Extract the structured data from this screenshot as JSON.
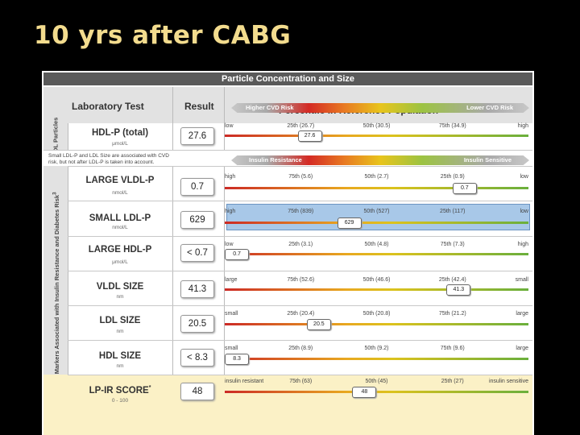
{
  "slide": {
    "title": "10 yrs after CABG"
  },
  "report": {
    "header": "Particle Concentration and Size",
    "lab_test_head": "Laboratory Test",
    "result_head": "Result",
    "percentile_title": "Percentile in Reference Population",
    "percentile_superscript": "2",
    "cvd_band": {
      "left": "Higher CVD Risk",
      "right": "Lower CVD Risk"
    },
    "ir_band": {
      "left": "Insulin Resistance",
      "right": "Insulin Sensitive"
    },
    "hdl_section_label": "HDL Particles",
    "lipoprotein_section_label": "Lipoprotein Markers Associated with Insulin Resistance and Diabetes Risk",
    "lipoprotein_section_superscript": "3",
    "small_ldl_note": "Small LDL-P and LDL Size are associated with CVD risk, but not after LDL-P is taken into account.",
    "colors": {
      "slide_bg": "#000000",
      "title": "#f3dc8e",
      "highlight": "#a8c8e8",
      "score_bg": "#fbf1c6"
    }
  },
  "rows": [
    {
      "name": "HDL-P (total)",
      "unit": "μmol/L",
      "result": "27.6",
      "marker": "27.6",
      "position_percent": 28,
      "labels": [
        "low",
        "25th (26.7)",
        "50th (30.5)",
        "75th (34.9)",
        "high"
      ],
      "gradient": "red-to-green"
    },
    {
      "name": "LARGE VLDL-P",
      "unit": "nmol/L",
      "result": "0.7",
      "marker": "0.7",
      "position_percent": 79,
      "labels": [
        "high",
        "75th (5.6)",
        "50th (2.7)",
        "25th (0.9)",
        "low"
      ],
      "gradient": "red-to-green"
    },
    {
      "name": "SMALL LDL-P",
      "unit": "nmol/L",
      "result": "629",
      "marker": "629",
      "position_percent": 41,
      "labels": [
        "high",
        "75th (839)",
        "50th (527)",
        "25th (117)",
        "low"
      ],
      "gradient": "red-to-green",
      "highlighted": true
    },
    {
      "name": "LARGE HDL-P",
      "unit": "μmol/L",
      "result": "< 0.7",
      "marker": "0.7",
      "position_percent": 4,
      "labels": [
        "low",
        "25th (3.1)",
        "50th (4.8)",
        "75th (7.3)",
        "high"
      ],
      "gradient": "red-to-green"
    },
    {
      "name": "VLDL SIZE",
      "unit": "nm",
      "result": "41.3",
      "marker": "41.3",
      "position_percent": 77,
      "labels": [
        "large",
        "75th (52.6)",
        "50th (46.6)",
        "25th (42.4)",
        "small"
      ],
      "gradient": "red-to-green"
    },
    {
      "name": "LDL SIZE",
      "unit": "nm",
      "result": "20.5",
      "marker": "20.5",
      "position_percent": 31,
      "labels": [
        "small",
        "25th (20.4)",
        "50th (20.8)",
        "75th (21.2)",
        "large"
      ],
      "gradient": "red-to-green"
    },
    {
      "name": "HDL SIZE",
      "unit": "nm",
      "result": "< 8.3",
      "marker": "8.3",
      "position_percent": 4,
      "labels": [
        "small",
        "25th (8.9)",
        "50th (9.2)",
        "75th (9.6)",
        "large"
      ],
      "gradient": "red-to-green"
    },
    {
      "name": "LP-IR SCORE",
      "name_superscript": "*",
      "unit": "0 - 100",
      "result": "48",
      "marker": "48",
      "position_percent": 46,
      "labels": [
        "insulin resistant",
        "75th (63)",
        "50th (45)",
        "25th (27)",
        "insulin sensitive"
      ],
      "gradient": "red-to-green",
      "score": true
    }
  ]
}
